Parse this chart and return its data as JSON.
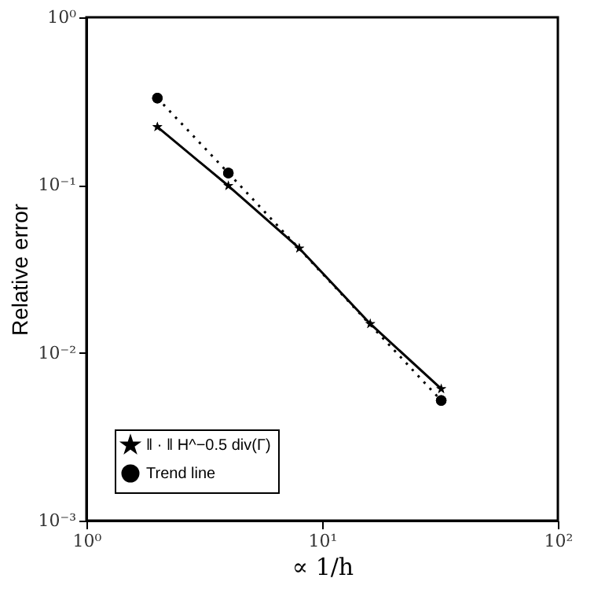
{
  "chart_data": {
    "type": "line",
    "xlabel": "∝ 1/h",
    "ylabel": "Relative error",
    "log": "xy",
    "grid": false,
    "legend": "bottom left",
    "xlim": [
      1,
      100
    ],
    "ylim": [
      0.001,
      1
    ],
    "xticks": [
      {
        "value": 1,
        "label": "10⁰"
      },
      {
        "value": 10,
        "label": "10¹"
      },
      {
        "value": 100,
        "label": "10²"
      }
    ],
    "yticks": [
      {
        "value": 0.001,
        "label": "10⁻³"
      },
      {
        "value": 0.01,
        "label": "10⁻²"
      },
      {
        "value": 0.1,
        "label": "10⁻¹"
      },
      {
        "value": 1,
        "label": "10⁰"
      }
    ],
    "series": [
      {
        "name": "‖ · ‖ H^−0.5 div(Γ)",
        "color": "#000000",
        "marker": "star",
        "line_style": "solid",
        "x": [
          2,
          4,
          8,
          16,
          32
        ],
        "values": [
          0.222,
          0.099,
          0.042,
          0.0149,
          0.0061
        ]
      },
      {
        "name": "Trend line",
        "color": "#000000",
        "marker": "circle",
        "line_style": "dotted",
        "x": [
          2,
          4,
          8,
          16,
          32
        ],
        "values": [
          0.33,
          0.118,
          null,
          null,
          0.0052
        ]
      }
    ]
  }
}
